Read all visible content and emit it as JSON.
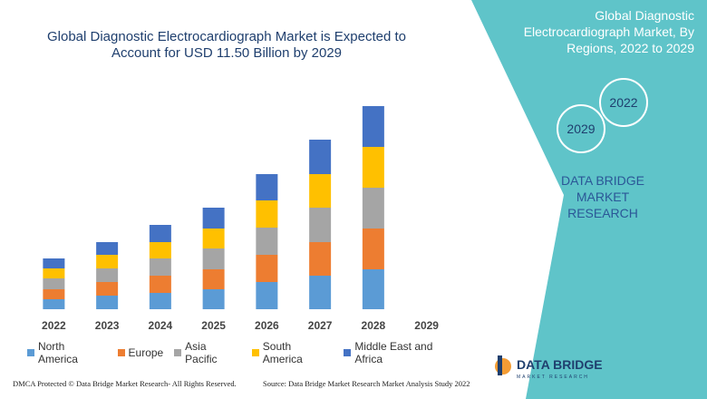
{
  "chart_data": {
    "type": "bar",
    "stacked": true,
    "title": "Global Diagnostic Electrocardiograph Market is Expected to Account for USD 11.50 Billion by 2029",
    "categories": [
      "2022",
      "2023",
      "2024",
      "2025",
      "2026",
      "2027",
      "2028",
      "2029"
    ],
    "series": [
      {
        "name": "North America",
        "color": "#5b9bd5",
        "values": [
          11,
          15,
          18,
          22,
          30,
          37,
          44,
          null
        ]
      },
      {
        "name": "Europe",
        "color": "#ed7d31",
        "values": [
          11,
          15,
          19,
          22,
          30,
          37,
          45,
          null
        ]
      },
      {
        "name": "Asia Pacific",
        "color": "#a5a5a5",
        "values": [
          12,
          15,
          19,
          23,
          30,
          38,
          45,
          null
        ]
      },
      {
        "name": "South America",
        "color": "#ffc000",
        "values": [
          11,
          15,
          18,
          22,
          30,
          37,
          45,
          null
        ]
      },
      {
        "name": "Middle East and Africa",
        "color": "#4472c4",
        "values": [
          11,
          14,
          19,
          23,
          29,
          38,
          45,
          null
        ]
      }
    ],
    "legend": "bottom"
  },
  "panel": {
    "title": "Global Diagnostic Electrocardiograph Market, By Regions, 2022 to 2029",
    "circle_start": "2022",
    "circle_end": "2029",
    "brand": "DATA BRIDGE MARKET RESEARCH"
  },
  "logo": {
    "name": "DATA BRIDGE",
    "tagline": "MARKET RESEARCH"
  },
  "footer": {
    "left": "DMCA Protected © Data Bridge Market Research- All Rights Reserved.",
    "right": "Source: Data Bridge Market Research Market Analysis Study 2022"
  }
}
